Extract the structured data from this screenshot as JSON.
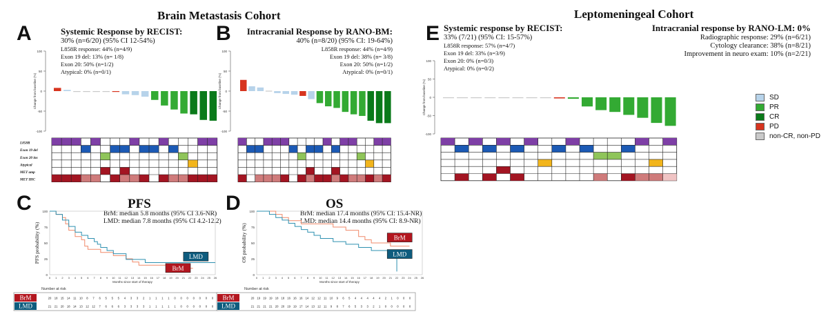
{
  "titles": {
    "brain": "Brain Metastasis Cohort",
    "lepto": "Leptomeningeal Cohort"
  },
  "panels": {
    "a": "A",
    "b": "B",
    "c": "C",
    "d": "D",
    "e": "E"
  },
  "panel_a": {
    "heading": "Systemic Response by RECIST:",
    "lines": [
      "30% (n=6/20) (95% CI 12-54%)",
      "L858R response: 44% (n=4/9)",
      "Exon 19 del: 13% (n= 1/8)",
      "Exon 20: 50% (n=1/2)",
      "Atypical: 0% (n=0/1)"
    ]
  },
  "panel_b": {
    "heading": "Intracranial Response by RANO-BM:",
    "lines": [
      "40% (n=8/20) (95% CI: 19-64%)",
      "L858R response: 44% (n=4/9)",
      "Exon 19 del: 38% (n= 3/8)",
      "Exon 20: 50% (n=1/2)",
      "Atypical: 0% (n=0/1)"
    ]
  },
  "panel_e": {
    "heading": "Systemic response by RECIST:",
    "lines": [
      "33% (7/21) (95% CI: 15-57%)",
      "L858R response: 57% (n=4/7)",
      "Exon 19 del: 33% (n=3/9)",
      "Exon 20: 0% (n=0/3)",
      "Atypical: 0% (n=0/2)"
    ],
    "heading2": "Intracranial response by RANO-LM: 0%",
    "lines2": [
      "Radiographic response: 29% (n=6/21)",
      "Cytology clearance: 38% (n=8/21)",
      "Improvement in neuro exam: 10% (n=2/21)"
    ]
  },
  "legend": {
    "items": [
      {
        "label": "SD",
        "color": "#b7d3ea"
      },
      {
        "label": "PR",
        "color": "#33aa33"
      },
      {
        "label": "CR",
        "color": "#0a7a1a"
      },
      {
        "label": "PD",
        "color": "#d7341f"
      },
      {
        "label": "non-CR, non-PD",
        "color": "#c9c9c9"
      }
    ]
  },
  "waterfall_ylabel": "Change from baseline (%)",
  "row_labels": [
    "L858R",
    "Exon 19 del",
    "Exon 20 ins",
    "Atypical",
    "MET amp",
    "MET IHC"
  ],
  "colors": {
    "SD": "#b7d3ea",
    "PR": "#33aa33",
    "CR": "#0a7a1a",
    "PD": "#d7341f",
    "NON": "#c9c9c9",
    "L858R": "#7e3fa6",
    "EX19": "#1c5ab5",
    "EX20": "#8fc55a",
    "ATYP": "#f2b51c",
    "METAMP": "#a31522",
    "IHC3": "#a31522",
    "IHC2": "#cf7b7b",
    "IHC1": "#f0c4c4",
    "brm": "#b3161f",
    "lmd": "#0e5c7e"
  },
  "chart_data": [
    {
      "id": "A",
      "type": "bar",
      "ylim": [
        -100,
        100
      ],
      "ylabel": "Change from baseline (%)",
      "values": [
        8,
        3,
        -1,
        -1,
        -1,
        -1,
        -2,
        -8,
        -10,
        -14,
        -22,
        -36,
        -46,
        -56,
        -58,
        -72,
        -74
      ],
      "response": [
        "PD",
        "SD",
        "NON",
        "NON",
        "NON",
        "NON",
        "PD",
        "SD",
        "SD",
        "SD",
        "PR",
        "PR",
        "PR",
        "PR",
        "CR",
        "CR",
        "CR"
      ],
      "mutation": [
        "L858R",
        "L858R",
        "L858R",
        "EX19",
        "L858R",
        "EX20",
        "EX19",
        "EX19",
        "L858R",
        "EX19",
        "EX19",
        "L858R",
        "EX19",
        "EX20",
        "ATYP",
        "L858R",
        "L858R"
      ],
      "met_amp": [
        0,
        0,
        0,
        0,
        0,
        1,
        0,
        1,
        0,
        0,
        0,
        0,
        0,
        0,
        0,
        0,
        0
      ],
      "met_ihc": [
        3,
        3,
        3,
        2,
        2,
        0,
        3,
        2,
        2,
        3,
        0,
        3,
        2,
        2,
        3,
        3,
        3
      ]
    },
    {
      "id": "B",
      "type": "bar",
      "ylim": [
        -100,
        100
      ],
      "ylabel": "Change from baseline (%)",
      "values": [
        28,
        12,
        9,
        1,
        -5,
        -7,
        -9,
        -12,
        -20,
        -30,
        -38,
        -42,
        -52,
        -58,
        -62,
        -74,
        -80,
        -80
      ],
      "response": [
        "PD",
        "SD",
        "SD",
        "NON",
        "SD",
        "SD",
        "SD",
        "PD",
        "SD",
        "PR",
        "PR",
        "PR",
        "PR",
        "PR",
        "PR",
        "CR",
        "CR",
        "CR"
      ],
      "mutation": [
        "L858R",
        "EX19",
        "EX19",
        "L858R",
        "L858R",
        "L858R",
        "EX19",
        "EX20",
        "EX19",
        "EX19",
        "L858R",
        "EX19",
        "L858R",
        "L858R",
        "EX20",
        "ATYP",
        "L858R",
        "L858R"
      ],
      "met_amp": [
        0,
        0,
        0,
        0,
        0,
        0,
        0,
        0,
        1,
        0,
        0,
        1,
        0,
        0,
        0,
        0,
        0,
        0
      ],
      "met_ihc": [
        3,
        0,
        2,
        2,
        2,
        3,
        0,
        3,
        2,
        3,
        3,
        2,
        3,
        2,
        2,
        3,
        2,
        3
      ]
    },
    {
      "id": "E",
      "type": "bar",
      "ylim": [
        -100,
        100
      ],
      "ylabel": "Change from baseline (%)",
      "values": [
        0,
        -1,
        -1,
        -1,
        -1,
        -1,
        -1,
        -2,
        -3,
        -4,
        -25,
        -35,
        -40,
        -48,
        -56,
        -70,
        -78
      ],
      "response": [
        "NON",
        "NON",
        "NON",
        "NON",
        "NON",
        "NON",
        "NON",
        "NON",
        "PD",
        "PR",
        "PR",
        "PR",
        "PR",
        "PR",
        "PR",
        "PR",
        "PR"
      ],
      "mutation": [
        "L858R",
        "EX19",
        "L858R",
        "EX19",
        "L858R",
        "EX19",
        "L858R",
        "ATYP",
        "EX19",
        "L858R",
        "EX19",
        "EX20",
        "EX20",
        "EX19",
        "L858R",
        "ATYP",
        "L858R"
      ],
      "met_amp": [
        0,
        0,
        0,
        0,
        1,
        0,
        0,
        0,
        0,
        0,
        0,
        0,
        0,
        0,
        0,
        0,
        0
      ],
      "met_ihc": [
        0,
        3,
        0,
        3,
        0,
        3,
        0,
        0,
        0,
        0,
        0,
        2,
        0,
        3,
        2,
        2,
        1
      ]
    },
    {
      "id": "C",
      "type": "line",
      "title": "PFS",
      "xlabel": "Months since start of therapy",
      "ylabel": "PFS probability (%)",
      "xlim": [
        0,
        26
      ],
      "ylim": [
        0,
        100
      ],
      "xticks": [
        0,
        1,
        2,
        3,
        4,
        5,
        6,
        7,
        8,
        9,
        10,
        11,
        12,
        13,
        14,
        15,
        16,
        17,
        18,
        19,
        20,
        21,
        22,
        23,
        24,
        25,
        26
      ],
      "yticks": [
        0,
        25,
        50,
        75,
        100
      ],
      "median_text": [
        "BrM: median 5.8 months (95% CI 3.6-NR)",
        "LMD: median 7.8 months (95% CI 4.2-12.2)"
      ],
      "series": [
        {
          "name": "BrM",
          "x": [
            0,
            1,
            2,
            2.5,
            3,
            4,
            5,
            5.5,
            6,
            7,
            8,
            10,
            12,
            13,
            14,
            17,
            20,
            21,
            22,
            22.5
          ],
          "y": [
            100,
            95,
            90,
            80,
            70,
            60,
            55,
            45,
            40,
            40,
            35,
            30,
            25,
            20,
            15,
            15,
            15,
            15,
            10,
            10
          ]
        },
        {
          "name": "LMD",
          "x": [
            0,
            1,
            2,
            3,
            4,
            5,
            6,
            7,
            7.5,
            8,
            9,
            10,
            12,
            15,
            20,
            26
          ],
          "y": [
            100,
            95,
            86,
            76,
            67,
            62,
            57,
            52,
            48,
            43,
            38,
            33,
            24,
            19,
            19,
            19
          ]
        }
      ],
      "risk_title": "Number at risk",
      "risk": [
        {
          "name": "BrM",
          "values": [
            20,
            18,
            15,
            14,
            11,
            10,
            8,
            7,
            6,
            5,
            5,
            5,
            4,
            3,
            3,
            2,
            1,
            1,
            1,
            1,
            0,
            0,
            0,
            0,
            0,
            0,
            0
          ]
        },
        {
          "name": "LMD",
          "values": [
            21,
            21,
            20,
            18,
            14,
            13,
            12,
            12,
            7,
            6,
            6,
            6,
            3,
            3,
            3,
            3,
            1,
            1,
            1,
            1,
            1,
            0,
            0,
            0,
            0,
            0,
            0
          ]
        }
      ]
    },
    {
      "id": "D",
      "type": "line",
      "title": "OS",
      "xlabel": "Months since start of therapy",
      "ylabel": "OS probability (%)",
      "xlim": [
        0,
        26
      ],
      "ylim": [
        0,
        100
      ],
      "xticks": [
        0,
        1,
        2,
        3,
        4,
        5,
        6,
        7,
        8,
        9,
        10,
        11,
        12,
        13,
        14,
        15,
        16,
        17,
        18,
        19,
        20,
        21,
        22,
        23,
        24,
        25,
        26
      ],
      "yticks": [
        0,
        25,
        50,
        75,
        100
      ],
      "median_text": [
        "BrM: median 17.4 months (95% CI: 15.4-NR)",
        "LMD: median 14.4 months (95% CI: 8.9-NR)"
      ],
      "series": [
        {
          "name": "BrM",
          "x": [
            0,
            3,
            4,
            5,
            7,
            9,
            12,
            14,
            16,
            17,
            18,
            21,
            22,
            24
          ],
          "y": [
            100,
            95,
            90,
            85,
            80,
            80,
            75,
            70,
            60,
            55,
            50,
            45,
            45,
            45
          ]
        },
        {
          "name": "LMD",
          "x": [
            0,
            2,
            3,
            4,
            5,
            6,
            7,
            8,
            9,
            10,
            11,
            12,
            14,
            16,
            18,
            20,
            21,
            22,
            22
          ],
          "y": [
            100,
            95,
            90,
            86,
            81,
            76,
            71,
            67,
            62,
            57,
            57,
            52,
            48,
            43,
            38,
            38,
            33,
            33,
            5
          ]
        }
      ],
      "risk_title": "Number at risk",
      "risk": [
        {
          "name": "BrM",
          "values": [
            20,
            19,
            19,
            19,
            18,
            18,
            16,
            16,
            16,
            14,
            12,
            12,
            11,
            10,
            9,
            6,
            5,
            4,
            4,
            4,
            4,
            4,
            2,
            1,
            0,
            0,
            0
          ]
        },
        {
          "name": "LMD",
          "values": [
            21,
            21,
            21,
            21,
            20,
            20,
            19,
            19,
            17,
            14,
            13,
            12,
            11,
            9,
            8,
            7,
            6,
            5,
            3,
            3,
            2,
            1,
            0,
            0,
            0,
            0,
            0
          ]
        }
      ]
    }
  ]
}
